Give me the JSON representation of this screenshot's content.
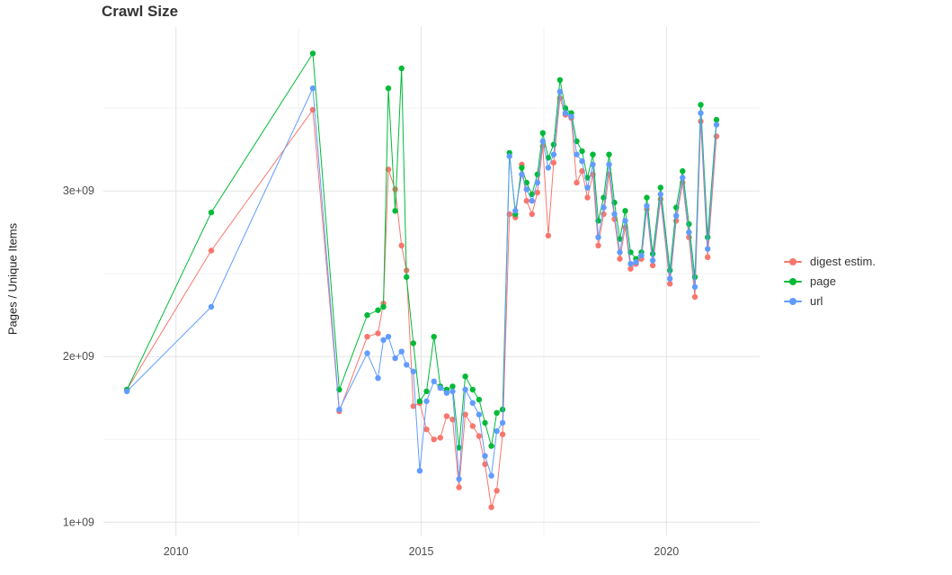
{
  "chart_data": {
    "type": "line",
    "title": "Crawl Size",
    "xlabel": "",
    "ylabel": "Pages / Unique Items",
    "grid": true,
    "legend_position": "right",
    "x_unit": "year (decimal)",
    "y_unit": "count, in units of 1e9 (billions)",
    "x_domain": [
      2008.52,
      2021.9
    ],
    "y_domain": [
      0.92,
      3.99
    ],
    "x_ticks": [
      {
        "value": 2010,
        "label": "2010"
      },
      {
        "value": 2015,
        "label": "2015"
      },
      {
        "value": 2020,
        "label": "2020"
      }
    ],
    "y_ticks": [
      {
        "value": 1,
        "label": "1e+09"
      },
      {
        "value": 2,
        "label": "2e+09"
      },
      {
        "value": 3,
        "label": "3e+09"
      }
    ],
    "x_minor": [
      2012.5,
      2017.5
    ],
    "y_minor": [
      1.5,
      2.5,
      3.5
    ],
    "x": [
      2009.0,
      2010.72,
      2012.79,
      2013.33,
      2013.9,
      2014.12,
      2014.23,
      2014.33,
      2014.47,
      2014.6,
      2014.7,
      2014.84,
      2014.97,
      2015.11,
      2015.26,
      2015.39,
      2015.52,
      2015.64,
      2015.77,
      2015.9,
      2016.05,
      2016.18,
      2016.3,
      2016.43,
      2016.54,
      2016.66,
      2016.8,
      2016.92,
      2017.05,
      2017.15,
      2017.26,
      2017.37,
      2017.48,
      2017.59,
      2017.7,
      2017.83,
      2017.94,
      2018.06,
      2018.17,
      2018.28,
      2018.39,
      2018.5,
      2018.61,
      2018.72,
      2018.83,
      2018.94,
      2019.05,
      2019.16,
      2019.27,
      2019.38,
      2019.49,
      2019.6,
      2019.72,
      2019.88,
      2020.07,
      2020.2,
      2020.33,
      2020.46,
      2020.58,
      2020.7,
      2020.84,
      2021.02
    ],
    "series": [
      {
        "name": "digest estim.",
        "color": "#F8766D",
        "values": [
          1.8,
          2.64,
          3.49,
          1.67,
          2.12,
          2.14,
          2.32,
          3.13,
          3.01,
          2.67,
          2.52,
          1.7,
          1.72,
          1.56,
          1.5,
          1.51,
          1.64,
          1.62,
          1.21,
          1.65,
          1.58,
          1.52,
          1.35,
          1.09,
          1.19,
          1.53,
          2.86,
          2.84,
          3.16,
          2.94,
          2.86,
          2.99,
          3.27,
          2.73,
          3.17,
          3.56,
          3.46,
          3.44,
          3.05,
          3.12,
          2.96,
          3.1,
          2.67,
          2.86,
          3.1,
          2.83,
          2.59,
          2.78,
          2.53,
          2.56,
          2.59,
          2.89,
          2.55,
          2.95,
          2.44,
          2.82,
          3.05,
          2.72,
          2.36,
          3.42,
          2.6,
          3.33
        ]
      },
      {
        "name": "page",
        "color": "#00BA38",
        "values": [
          1.8,
          2.87,
          3.83,
          1.8,
          2.25,
          2.28,
          2.3,
          3.62,
          2.88,
          3.74,
          2.48,
          2.08,
          1.73,
          1.79,
          2.12,
          1.82,
          1.8,
          1.82,
          1.45,
          1.88,
          1.8,
          1.74,
          1.6,
          1.46,
          1.66,
          1.68,
          3.23,
          2.86,
          3.14,
          3.05,
          2.98,
          3.1,
          3.35,
          3.2,
          3.28,
          3.67,
          3.5,
          3.47,
          3.3,
          3.24,
          3.08,
          3.22,
          2.82,
          2.96,
          3.22,
          2.93,
          2.71,
          2.88,
          2.63,
          2.59,
          2.63,
          2.96,
          2.62,
          3.02,
          2.52,
          2.9,
          3.12,
          2.8,
          2.48,
          3.52,
          2.72,
          3.43
        ]
      },
      {
        "name": "url",
        "color": "#619CFF",
        "values": [
          1.79,
          2.3,
          3.62,
          1.68,
          2.02,
          1.87,
          2.1,
          2.12,
          1.99,
          2.03,
          1.95,
          1.91,
          1.31,
          1.73,
          1.85,
          1.81,
          1.78,
          1.79,
          1.26,
          1.8,
          1.72,
          1.65,
          1.4,
          1.28,
          1.55,
          1.6,
          3.21,
          2.88,
          3.1,
          3.01,
          2.94,
          3.05,
          3.3,
          3.14,
          3.22,
          3.6,
          3.47,
          3.45,
          3.22,
          3.18,
          3.02,
          3.16,
          2.72,
          2.9,
          3.16,
          2.86,
          2.63,
          2.82,
          2.56,
          2.57,
          2.61,
          2.91,
          2.58,
          2.98,
          2.47,
          2.85,
          3.08,
          2.75,
          2.42,
          3.47,
          2.65,
          3.4
        ]
      }
    ]
  },
  "colors": {
    "grid_major": "#e4e4e4",
    "grid_minor": "#f2f2f2",
    "tick_label": "#4d4d4d",
    "title": "#333333"
  }
}
